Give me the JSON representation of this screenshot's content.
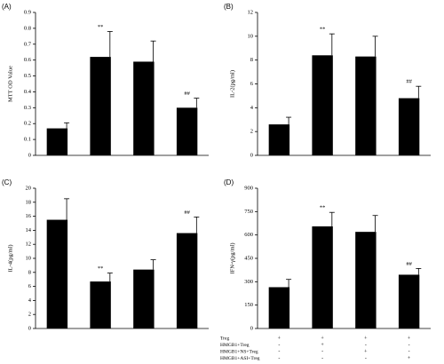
{
  "chart_data": [
    {
      "type": "bar",
      "panel_label": "(A)",
      "ylabel": "MTT OD Value",
      "categories": [
        null,
        null,
        null,
        null
      ],
      "values": [
        0.17,
        0.62,
        0.59,
        0.3
      ],
      "errors": [
        0.035,
        0.16,
        0.13,
        0.06
      ],
      "value_annotations": [
        null,
        "**",
        null,
        "##"
      ],
      "color": "#000000",
      "ylim": [
        0,
        0.9
      ],
      "yticks": [
        0,
        0.1,
        0.2,
        0.3,
        0.4,
        0.5,
        0.6,
        0.7,
        0.8,
        0.9
      ]
    },
    {
      "type": "bar",
      "panel_label": "(B)",
      "ylabel": "IL-2(pg/ml)",
      "categories": [
        null,
        null,
        null,
        null
      ],
      "values": [
        2.6,
        8.4,
        8.3,
        4.8
      ],
      "errors": [
        0.6,
        1.8,
        1.7,
        1.0
      ],
      "value_annotations": [
        null,
        "**",
        null,
        "##"
      ],
      "color": "#000000",
      "ylim": [
        0,
        12
      ],
      "yticks": [
        0,
        2,
        4,
        6,
        8,
        10,
        12
      ]
    },
    {
      "type": "bar",
      "panel_label": "(C)",
      "ylabel": "IL-4(pg/ml)",
      "categories": [
        null,
        null,
        null,
        null
      ],
      "values": [
        15.5,
        6.7,
        8.4,
        13.6
      ],
      "errors": [
        3.0,
        1.2,
        1.4,
        2.3
      ],
      "value_annotations": [
        null,
        "**",
        null,
        "##"
      ],
      "color": "#000000",
      "ylim": [
        0,
        20
      ],
      "yticks": [
        0,
        2,
        4,
        6,
        8,
        10,
        12,
        14,
        16,
        18,
        20
      ]
    },
    {
      "type": "bar",
      "panel_label": "(D)",
      "ylabel": "IFN-γ(pg/ml)",
      "categories": [
        null,
        null,
        null,
        null
      ],
      "values": [
        265,
        655,
        620,
        345
      ],
      "errors": [
        50,
        90,
        105,
        40
      ],
      "value_annotations": [
        null,
        "**",
        null,
        "##"
      ],
      "color": "#000000",
      "ylim": [
        0,
        900
      ],
      "yticks": [
        0,
        150,
        300,
        450,
        600,
        750,
        900
      ]
    }
  ],
  "conditions": [
    {
      "label": "Treg",
      "marks": [
        "+",
        "+",
        "+",
        "+"
      ]
    },
    {
      "label": "HMGB1+Treg",
      "marks": [
        "-",
        "+",
        "-",
        "-"
      ]
    },
    {
      "label": "HMGB1+NS+Treg",
      "marks": [
        "-",
        "-",
        "+",
        "-"
      ]
    },
    {
      "label": "HMGB1+ASI+Treg",
      "marks": [
        "-",
        "-",
        "-",
        "+"
      ]
    }
  ]
}
